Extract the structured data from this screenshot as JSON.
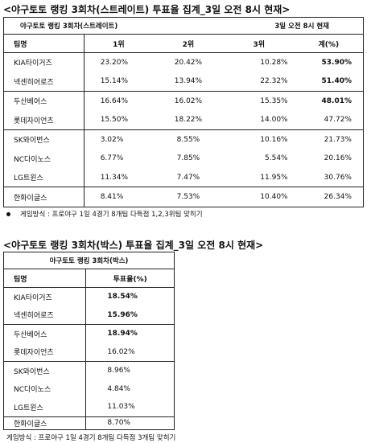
{
  "title1": "<야구토토 랭킹 3회차(스트레이트) 투표율 집계_3일 오전 8시 현재>",
  "straight": {
    "caption_left": "야구토토 랭킹 3회차(스트레이트)",
    "caption_right": "3일 오전 8시 현재",
    "headers": [
      "팀명",
      "1위",
      "2위",
      "3위",
      "계(%)"
    ],
    "rows": [
      {
        "team": "KIA타이거즈",
        "r1": "23.20%",
        "r2": "20.42%",
        "r3": "10.28%",
        "total": "53.90%",
        "bold": true
      },
      {
        "team": "넥센히어로즈",
        "r1": "15.14%",
        "r2": "13.94%",
        "r3": "22.32%",
        "total": "51.40%",
        "bold": true
      },
      {
        "team": "두산베어스",
        "r1": "16.64%",
        "r2": "16.02%",
        "r3": "15.35%",
        "total": "48.01%",
        "bold": true
      },
      {
        "team": "롯데자이언츠",
        "r1": "15.50%",
        "r2": "18.22%",
        "r3": "14.00%",
        "total": "47.72%",
        "bold": false
      },
      {
        "team": "SK와이번스",
        "r1": "3.02%",
        "r2": "8.55%",
        "r3": "10.16%",
        "total": "21.73%",
        "bold": false
      },
      {
        "team": "NC다이노스",
        "r1": "6.77%",
        "r2": "7.85%",
        "r3": "5.54%",
        "total": "20.16%",
        "bold": false
      },
      {
        "team": "LG트윈스",
        "r1": "11.34%",
        "r2": "7.47%",
        "r3": "11.95%",
        "total": "30.76%",
        "bold": false
      },
      {
        "team": "한화이글스",
        "r1": "8.41%",
        "r2": "7.53%",
        "r3": "10.40%",
        "total": "26.34%",
        "bold": false
      }
    ],
    "note": "게임방식 : 프로야구 1일 4경기 8개팀 다득점 1,2,3위팀 맞히기"
  },
  "title2": "<야구토토 랭킹 3회차(박스) 투표율 집계_3일 오전 8시 현재>",
  "box": {
    "caption": "야구토토 랭킹 3회차(박스)",
    "headers": [
      "팀명",
      "투표율(%)"
    ],
    "rows": [
      {
        "team": "KIA타이거즈",
        "rate": "18.54%",
        "bold": true
      },
      {
        "team": "넥센히어로즈",
        "rate": "15.96%",
        "bold": true
      },
      {
        "team": "두산베어스",
        "rate": "18.94%",
        "bold": true
      },
      {
        "team": "롯데자이언츠",
        "rate": "16.02%",
        "bold": false
      },
      {
        "team": "SK와이번스",
        "rate": "8.96%",
        "bold": false
      },
      {
        "team": "NC다이노스",
        "rate": "4.84%",
        "bold": false
      },
      {
        "team": "LG트윈스",
        "rate": "11.03%",
        "bold": false
      },
      {
        "team": "한화이글스",
        "rate": "8.70%",
        "bold": false
      }
    ],
    "note": "게임방식 : 프로야구 1일 4경기 8개팀 다득점 3개팀 맞히기"
  }
}
